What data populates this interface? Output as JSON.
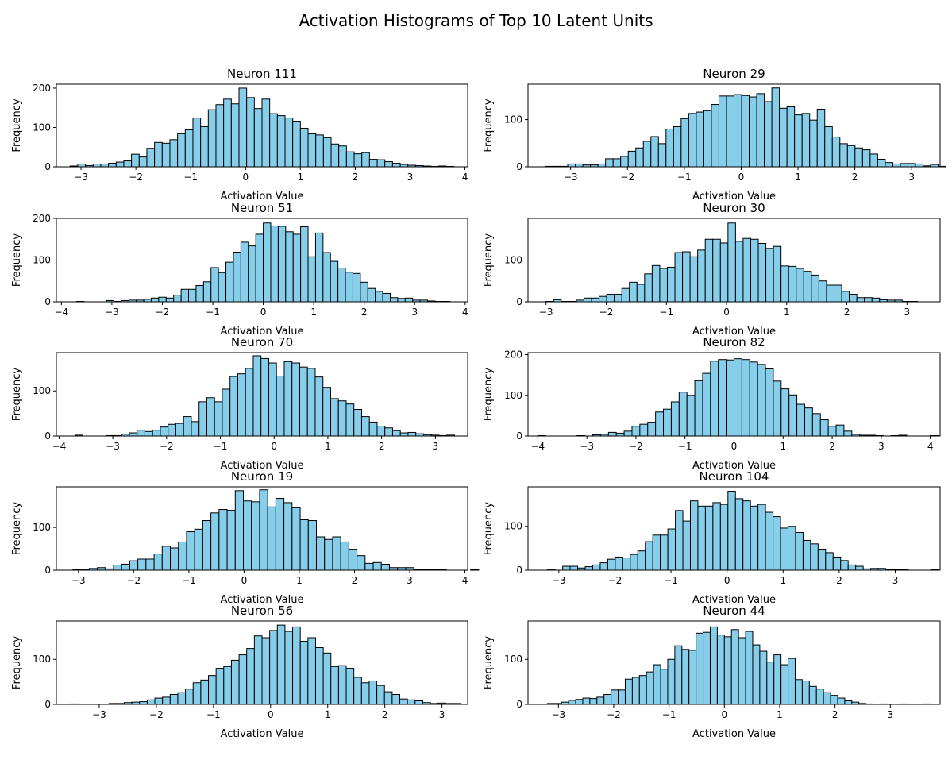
{
  "figure": {
    "title": "Activation Histograms of Top 10 Latent Units",
    "bar_color": "#87CEEB",
    "edge_color": "#000000"
  },
  "chart_data": [
    {
      "type": "bar",
      "title": "Neuron 111",
      "xlabel": "Activation Value",
      "ylabel": "Frequency",
      "x_ticks": [
        -3,
        -2,
        -1,
        0,
        1,
        2,
        3,
        4
      ],
      "y_ticks": [
        0,
        100,
        200
      ],
      "xlim": [
        -3.45,
        4.05
      ],
      "ylim": [
        0,
        210
      ],
      "bin_start": -3.2,
      "bin_width": 0.14,
      "values": [
        2,
        7,
        3,
        7,
        7,
        9,
        12,
        15,
        32,
        25,
        47,
        62,
        60,
        69,
        84,
        94,
        124,
        102,
        145,
        158,
        172,
        160,
        200,
        176,
        148,
        172,
        135,
        130,
        124,
        116,
        98,
        84,
        81,
        74,
        58,
        53,
        38,
        33,
        36,
        19,
        18,
        13,
        9,
        6,
        4,
        3,
        2,
        1,
        2,
        1
      ]
    },
    {
      "type": "bar",
      "title": "Neuron 29",
      "xlabel": "Activation Value",
      "ylabel": "Frequency",
      "x_ticks": [
        -3,
        -2,
        -1,
        0,
        1,
        2,
        3
      ],
      "y_ticks": [
        0,
        100
      ],
      "xlim": [
        -3.75,
        3.5
      ],
      "ylim": [
        0,
        175
      ],
      "bin_start": -3.45,
      "bin_width": 0.133,
      "values": [
        1,
        1,
        1,
        6,
        6,
        4,
        4,
        6,
        17,
        17,
        22,
        33,
        40,
        54,
        64,
        49,
        80,
        85,
        102,
        113,
        116,
        119,
        132,
        150,
        150,
        153,
        151,
        148,
        155,
        138,
        167,
        124,
        127,
        110,
        113,
        99,
        122,
        85,
        63,
        49,
        45,
        40,
        36,
        27,
        16,
        9,
        6,
        7,
        7,
        6,
        2,
        5,
        1
      ]
    },
    {
      "type": "bar",
      "title": "Neuron 51",
      "xlabel": "Activation Value",
      "ylabel": "Frequency",
      "x_ticks": [
        -4,
        -3,
        -2,
        -1,
        0,
        1,
        2,
        3,
        4
      ],
      "y_ticks": [
        0,
        100,
        200
      ],
      "xlim": [
        -4.1,
        4.05
      ],
      "ylim": [
        0,
        200
      ],
      "bin_start": -3.7,
      "bin_width": 0.148,
      "values": [
        1,
        0,
        0,
        0,
        3,
        1,
        3,
        4,
        4,
        6,
        9,
        11,
        9,
        16,
        30,
        30,
        39,
        48,
        82,
        70,
        95,
        119,
        143,
        134,
        162,
        189,
        182,
        181,
        168,
        162,
        180,
        108,
        165,
        118,
        97,
        81,
        71,
        68,
        47,
        32,
        25,
        20,
        10,
        8,
        9,
        4,
        4,
        2,
        1,
        1
      ]
    },
    {
      "type": "bar",
      "title": "Neuron 30",
      "xlabel": "Activation Value",
      "ylabel": "Frequency",
      "x_ticks": [
        -3,
        -2,
        -1,
        0,
        1,
        2,
        3
      ],
      "y_ticks": [
        0,
        100
      ],
      "xlim": [
        -3.3,
        3.55
      ],
      "ylim": [
        0,
        200
      ],
      "bin_start": -3.0,
      "bin_width": 0.126,
      "values": [
        1,
        5,
        1,
        1,
        4,
        9,
        9,
        13,
        18,
        18,
        32,
        47,
        42,
        67,
        87,
        80,
        83,
        118,
        120,
        108,
        124,
        150,
        150,
        141,
        189,
        145,
        152,
        150,
        140,
        128,
        133,
        86,
        85,
        80,
        73,
        64,
        50,
        40,
        40,
        25,
        18,
        10,
        10,
        9,
        5,
        4,
        4,
        1,
        1
      ]
    },
    {
      "type": "bar",
      "title": "Neuron 70",
      "xlabel": "Activation Value",
      "ylabel": "Frequency",
      "x_ticks": [
        -4,
        -3,
        -2,
        -1,
        0,
        1,
        2,
        3
      ],
      "y_ticks": [
        0,
        100
      ],
      "xlim": [
        -4.05,
        3.6
      ],
      "ylim": [
        0,
        185
      ],
      "bin_start": -3.7,
      "bin_width": 0.144,
      "values": [
        2,
        0,
        0,
        0,
        1,
        1,
        4,
        7,
        13,
        10,
        13,
        20,
        26,
        28,
        43,
        32,
        76,
        85,
        76,
        104,
        132,
        138,
        150,
        178,
        172,
        162,
        133,
        165,
        162,
        153,
        150,
        131,
        108,
        83,
        78,
        71,
        59,
        43,
        31,
        22,
        18,
        12,
        7,
        8,
        5,
        3,
        2,
        1,
        2
      ]
    },
    {
      "type": "bar",
      "title": "Neuron 82",
      "xlabel": "Activation Value",
      "ylabel": "Frequency",
      "x_ticks": [
        -4,
        -3,
        -2,
        -1,
        0,
        1,
        2,
        3,
        4
      ],
      "y_ticks": [
        0,
        100,
        200
      ],
      "xlim": [
        -4.2,
        4.2
      ],
      "ylim": [
        0,
        205
      ],
      "bin_start": -4.0,
      "bin_width": 0.16,
      "values": [
        1,
        0,
        0,
        0,
        0,
        1,
        0,
        3,
        4,
        9,
        7,
        12,
        24,
        29,
        34,
        59,
        66,
        84,
        108,
        100,
        136,
        154,
        184,
        188,
        187,
        190,
        188,
        182,
        176,
        165,
        135,
        116,
        101,
        78,
        69,
        55,
        40,
        24,
        27,
        12,
        4,
        2,
        2,
        1,
        0,
        1,
        2,
        0,
        0,
        0,
        1
      ]
    },
    {
      "type": "bar",
      "title": "Neuron 19",
      "xlabel": "Activation Value",
      "ylabel": "Frequency",
      "x_ticks": [
        -3,
        -2,
        -1,
        0,
        1,
        2,
        3,
        4
      ],
      "y_ticks": [
        0,
        100
      ],
      "xlim": [
        -3.4,
        4.05
      ],
      "ylim": [
        0,
        195
      ],
      "bin_start": -3.1,
      "bin_width": 0.147,
      "values": [
        1,
        2,
        4,
        6,
        3,
        12,
        14,
        22,
        26,
        26,
        38,
        56,
        52,
        66,
        90,
        96,
        116,
        134,
        142,
        140,
        186,
        162,
        160,
        188,
        148,
        168,
        158,
        146,
        118,
        116,
        78,
        72,
        78,
        66,
        49,
        34,
        16,
        18,
        14,
        6,
        6,
        6,
        1,
        1,
        1,
        1,
        0,
        0,
        0,
        1
      ]
    },
    {
      "type": "bar",
      "title": "Neuron 104",
      "xlabel": "Activation Value",
      "ylabel": "Frequency",
      "x_ticks": [
        -3,
        -2,
        -1,
        0,
        1,
        2,
        3
      ],
      "y_ticks": [
        0,
        100
      ],
      "xlim": [
        -3.55,
        3.8
      ],
      "ylim": [
        0,
        190
      ],
      "bin_start": -3.2,
      "bin_width": 0.134,
      "values": [
        2,
        0,
        9,
        9,
        5,
        8,
        12,
        17,
        25,
        30,
        28,
        36,
        44,
        65,
        80,
        80,
        94,
        136,
        112,
        158,
        146,
        146,
        154,
        150,
        180,
        163,
        158,
        146,
        150,
        132,
        122,
        96,
        100,
        86,
        68,
        60,
        48,
        40,
        30,
        22,
        12,
        9,
        3,
        4,
        4,
        1,
        1,
        1,
        0,
        0,
        0,
        1
      ]
    },
    {
      "type": "bar",
      "title": "Neuron 56",
      "xlabel": "Activation Value",
      "ylabel": "Frequency",
      "x_ticks": [
        -3,
        -2,
        -1,
        0,
        1,
        2,
        3
      ],
      "y_ticks": [
        0,
        100
      ],
      "xlim": [
        -3.75,
        3.45
      ],
      "ylim": [
        0,
        185
      ],
      "bin_start": -3.5,
      "bin_width": 0.134,
      "values": [
        1,
        0,
        0,
        0,
        0,
        2,
        2,
        4,
        5,
        6,
        10,
        14,
        16,
        22,
        26,
        34,
        48,
        54,
        64,
        80,
        84,
        98,
        110,
        124,
        152,
        148,
        164,
        176,
        162,
        172,
        140,
        148,
        126,
        114,
        84,
        86,
        80,
        60,
        48,
        52,
        42,
        28,
        22,
        12,
        10,
        8,
        4,
        2,
        3,
        2,
        2
      ]
    },
    {
      "type": "bar",
      "title": "Neuron 44",
      "xlabel": "Activation Value",
      "ylabel": "Frequency",
      "x_ticks": [
        -3,
        -2,
        -1,
        0,
        1,
        2,
        3
      ],
      "y_ticks": [
        0,
        100
      ],
      "xlim": [
        -3.55,
        3.9
      ],
      "ylim": [
        0,
        185
      ],
      "bin_start": -3.2,
      "bin_width": 0.128,
      "values": [
        2,
        2,
        5,
        9,
        11,
        14,
        13,
        16,
        22,
        32,
        32,
        56,
        60,
        64,
        72,
        88,
        78,
        100,
        130,
        122,
        120,
        158,
        160,
        172,
        154,
        150,
        166,
        148,
        162,
        132,
        118,
        94,
        110,
        88,
        102,
        55,
        52,
        40,
        34,
        26,
        20,
        14,
        8,
        5,
        2,
        1,
        0,
        1,
        0,
        0,
        1,
        0,
        0,
        1
      ]
    }
  ]
}
